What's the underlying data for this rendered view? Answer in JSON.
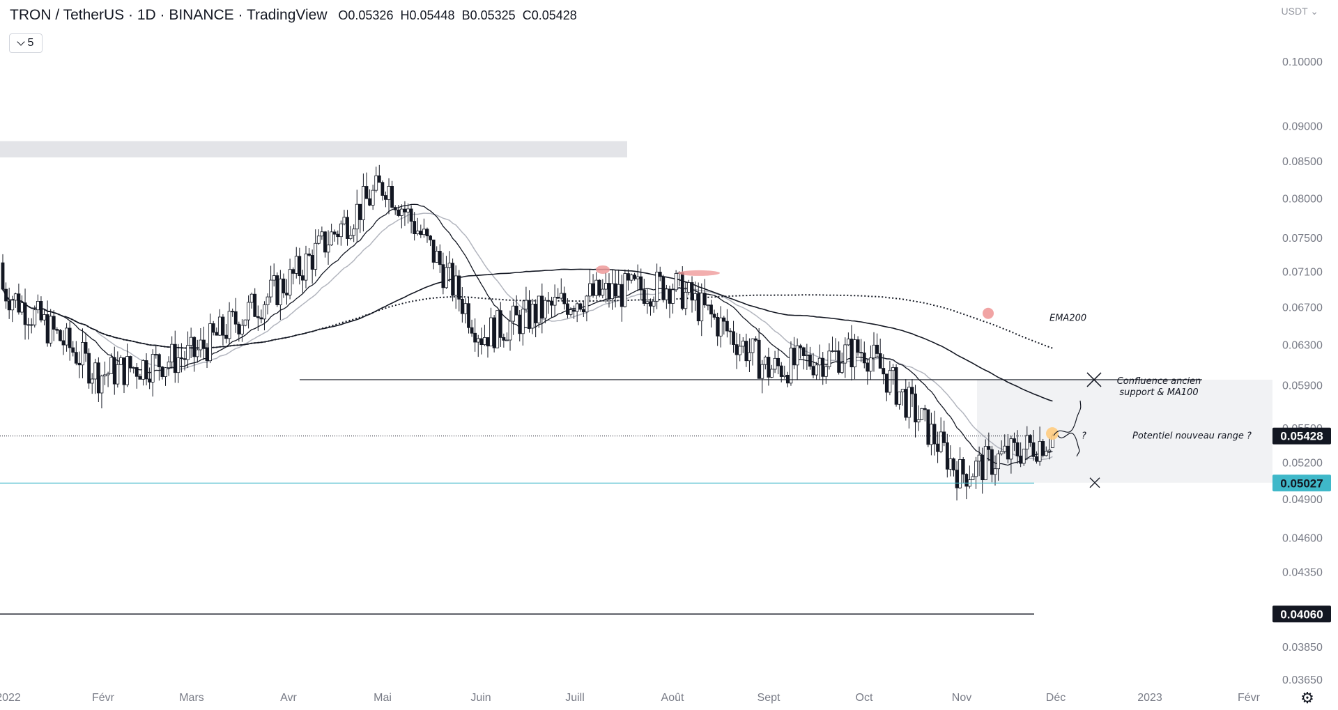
{
  "header": {
    "symbol": "TRON / TetherUS · 1D · BINANCE · TradingView",
    "open_label": "O",
    "open": "0.05326",
    "high_label": "H",
    "high": "0.05448",
    "low_label": "B",
    "low": "0.05325",
    "close_label": "C",
    "close": "0.05428",
    "ma_period": "5",
    "currency": "USDT"
  },
  "chart_data": {
    "type": "candlestick",
    "symbol": "TRX/USDT",
    "exchange": "BINANCE",
    "interval": "1D",
    "y_axis": {
      "ticks": [
        "0.10000",
        "0.09000",
        "0.08500",
        "0.08000",
        "0.07500",
        "0.07100",
        "0.06700",
        "0.06300",
        "0.05900",
        "0.05500",
        "0.05200",
        "0.04900",
        "0.04600",
        "0.04350",
        "0.03850",
        "0.03650"
      ],
      "log_scale": true
    },
    "x_axis": {
      "labels": [
        "2022",
        "Févr",
        "Mars",
        "Avr",
        "Mai",
        "Juin",
        "Juill",
        "Août",
        "Sept",
        "Oct",
        "Nov",
        "Déc",
        "2023",
        "Févr"
      ]
    },
    "price_tags": [
      {
        "value": "0.05428",
        "color": "#131722",
        "text_color": "#ffffff"
      },
      {
        "value": "0.05027",
        "color": "#3fb8c9",
        "text_color": "#131722"
      },
      {
        "value": "0.04060",
        "color": "#131722",
        "text_color": "#ffffff"
      }
    ],
    "levels": {
      "current_price": 0.05428,
      "support_line": 0.05027,
      "bottom_line": 0.0406,
      "old_support": 0.0595
    },
    "zones": [
      {
        "name": "resistance-zone",
        "from": 0.0855,
        "to": 0.0878
      },
      {
        "name": "range-zone",
        "from": 0.0503,
        "to": 0.0595
      }
    ],
    "annotations": {
      "ema200": "EMA200",
      "confluence_line1": "Confluence ancien",
      "confluence_line2": "support & MA100",
      "range": "Potentiel nouveau range ?",
      "question": "?"
    },
    "months_anchor": [
      {
        "label": "Jan",
        "close": 0.069
      },
      {
        "label": "Feb",
        "close": 0.06
      },
      {
        "label": "Mar",
        "close": 0.062
      },
      {
        "label": "Apr",
        "close": 0.07
      },
      {
        "label": "May",
        "close": 0.082
      },
      {
        "label": "Jun",
        "close": 0.064
      },
      {
        "label": "Jul",
        "close": 0.068
      },
      {
        "label": "Aug",
        "close": 0.0695
      },
      {
        "label": "Sep",
        "close": 0.0605
      },
      {
        "label": "Oct",
        "close": 0.0625
      },
      {
        "label": "Nov",
        "close": 0.051
      },
      {
        "label": "Dec",
        "close": 0.05428
      }
    ],
    "grid": false
  }
}
